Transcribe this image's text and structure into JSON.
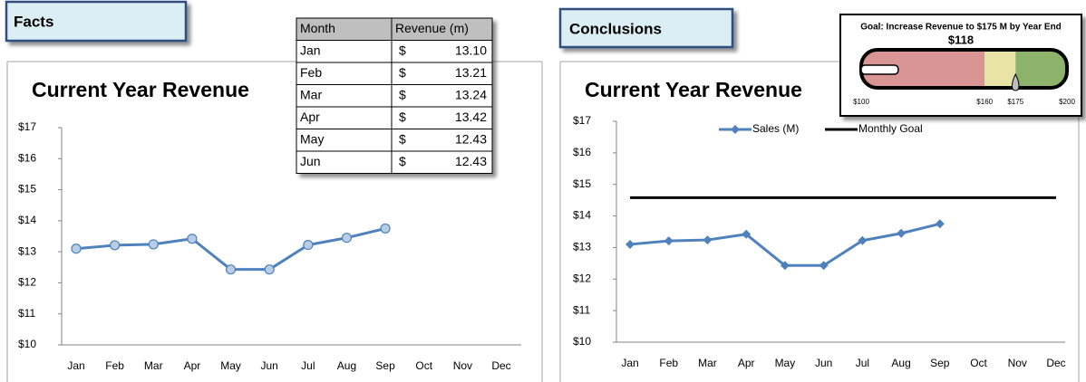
{
  "facts_label": "Facts",
  "conclusions_label": "Conclusions",
  "table": {
    "header": [
      "Month",
      "Revenue (m)"
    ],
    "rows": [
      [
        "Jan",
        "$",
        "13.10"
      ],
      [
        "Feb",
        "$",
        "13.21"
      ],
      [
        "Mar",
        "$",
        "13.24"
      ],
      [
        "Apr",
        "$",
        "13.42"
      ],
      [
        "May",
        "$",
        "12.43"
      ],
      [
        "Jun",
        "$",
        "12.43"
      ]
    ]
  },
  "gauge": {
    "title": "Goal: Increase Revenue to $175 M by Year End",
    "value": 118,
    "value_label": "$118",
    "range": [
      100,
      200
    ],
    "goal": 175,
    "ticks": [
      {
        "value": 100,
        "label": "$100"
      },
      {
        "value": 160,
        "label": "$160"
      },
      {
        "value": 175,
        "label": "$175"
      },
      {
        "value": 200,
        "label": "$200"
      }
    ],
    "bands": [
      {
        "from": 100,
        "to": 160,
        "color": "#d99594"
      },
      {
        "from": 160,
        "to": 175,
        "color": "#e9e4a6"
      },
      {
        "from": 175,
        "to": 200,
        "color": "#8db36a"
      }
    ]
  },
  "chart_data": [
    {
      "type": "line",
      "title": "Current Year Revenue",
      "categories": [
        "Jan",
        "Feb",
        "Mar",
        "Apr",
        "May",
        "Jun",
        "Jul",
        "Aug",
        "Sep",
        "Oct",
        "Nov",
        "Dec"
      ],
      "series": [
        {
          "color": "#4f81bd",
          "marker": "circle",
          "marker_fill": "#b8cce4",
          "values": [
            13.1,
            13.21,
            13.24,
            13.42,
            12.43,
            12.43,
            13.22,
            13.45,
            13.75,
            null,
            null,
            null
          ]
        }
      ],
      "ylim": [
        10,
        17
      ],
      "yticks": [
        {
          "value": 10,
          "label": "$10"
        },
        {
          "value": 11,
          "label": "$11"
        },
        {
          "value": 12,
          "label": "$12"
        },
        {
          "value": 13,
          "label": "$13"
        },
        {
          "value": 14,
          "label": "$14"
        },
        {
          "value": 15,
          "label": "$15"
        },
        {
          "value": 16,
          "label": "$16"
        },
        {
          "value": 17,
          "label": "$17"
        }
      ],
      "legend": false
    },
    {
      "type": "line",
      "title": "Current Year Revenue",
      "categories": [
        "Jan",
        "Feb",
        "Mar",
        "Apr",
        "May",
        "Jun",
        "Jul",
        "Aug",
        "Sep",
        "Oct",
        "Nov",
        "Dec"
      ],
      "series": [
        {
          "name": "Sales (M)",
          "color": "#4f81bd",
          "marker": "diamond",
          "marker_fill": "#4f81bd",
          "values": [
            13.1,
            13.21,
            13.24,
            13.42,
            12.43,
            12.43,
            13.22,
            13.45,
            13.75,
            null,
            null,
            null
          ]
        },
        {
          "name": "Monthly Goal",
          "color": "#000000",
          "marker": "none",
          "values": [
            14.58,
            14.58,
            14.58,
            14.58,
            14.58,
            14.58,
            14.58,
            14.58,
            14.58,
            14.58,
            14.58,
            14.58
          ]
        }
      ],
      "ylim": [
        10,
        17
      ],
      "yticks": [
        {
          "value": 10,
          "label": "$10"
        },
        {
          "value": 11,
          "label": "$11"
        },
        {
          "value": 12,
          "label": "$12"
        },
        {
          "value": 13,
          "label": "$13"
        },
        {
          "value": 14,
          "label": "$14"
        },
        {
          "value": 15,
          "label": "$15"
        },
        {
          "value": 16,
          "label": "$16"
        },
        {
          "value": 17,
          "label": "$17"
        }
      ],
      "legend": true
    }
  ]
}
